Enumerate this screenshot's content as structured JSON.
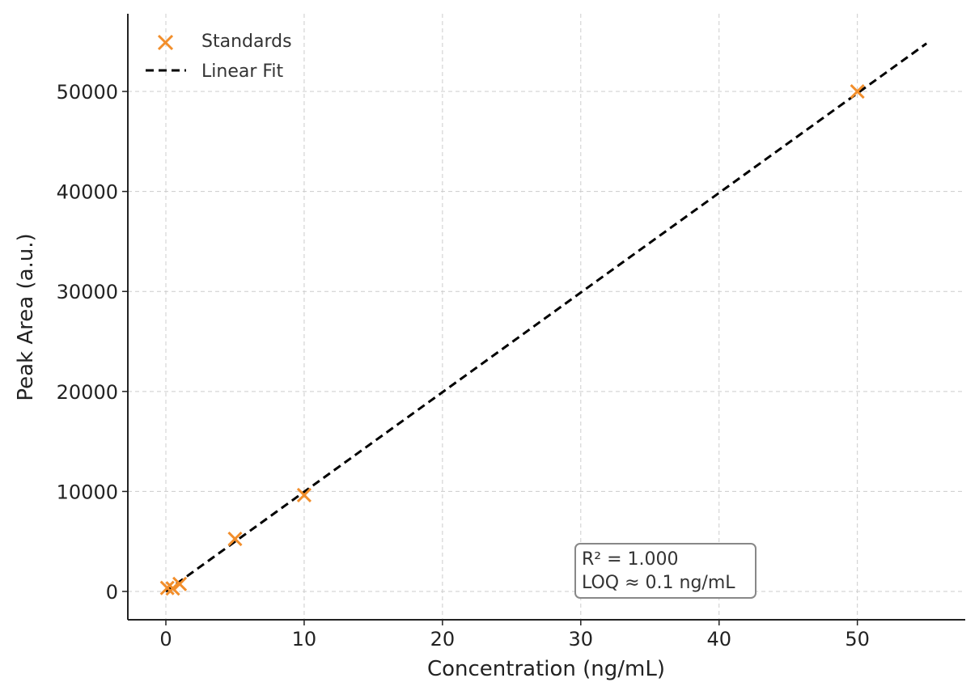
{
  "chart_data": {
    "type": "scatter",
    "title": "",
    "xlabel": "Concentration (ng/mL)",
    "ylabel": "Peak Area (a.u.)",
    "xlim": [
      -2.75,
      57.8
    ],
    "ylim": [
      -2830,
      57770
    ],
    "xticks": [
      0,
      10,
      20,
      30,
      40,
      50
    ],
    "yticks": [
      0,
      10000,
      20000,
      30000,
      40000,
      50000
    ],
    "grid": true,
    "legend_position": "top-left",
    "series": [
      {
        "name": "Standards",
        "type": "scatter",
        "color": "#f28e2b",
        "x": [
          0.1,
          0.5,
          1,
          5,
          10,
          50
        ],
        "y": [
          350,
          300,
          750,
          5260,
          9630,
          50000
        ]
      },
      {
        "name": "Linear Fit",
        "type": "line",
        "color": "#000000",
        "x": [
          0,
          55
        ],
        "y": [
          0,
          54800
        ]
      }
    ],
    "annotation": {
      "lines": [
        "R² = 1.000",
        "LOQ ≈ 0.1 ng/mL"
      ]
    }
  }
}
